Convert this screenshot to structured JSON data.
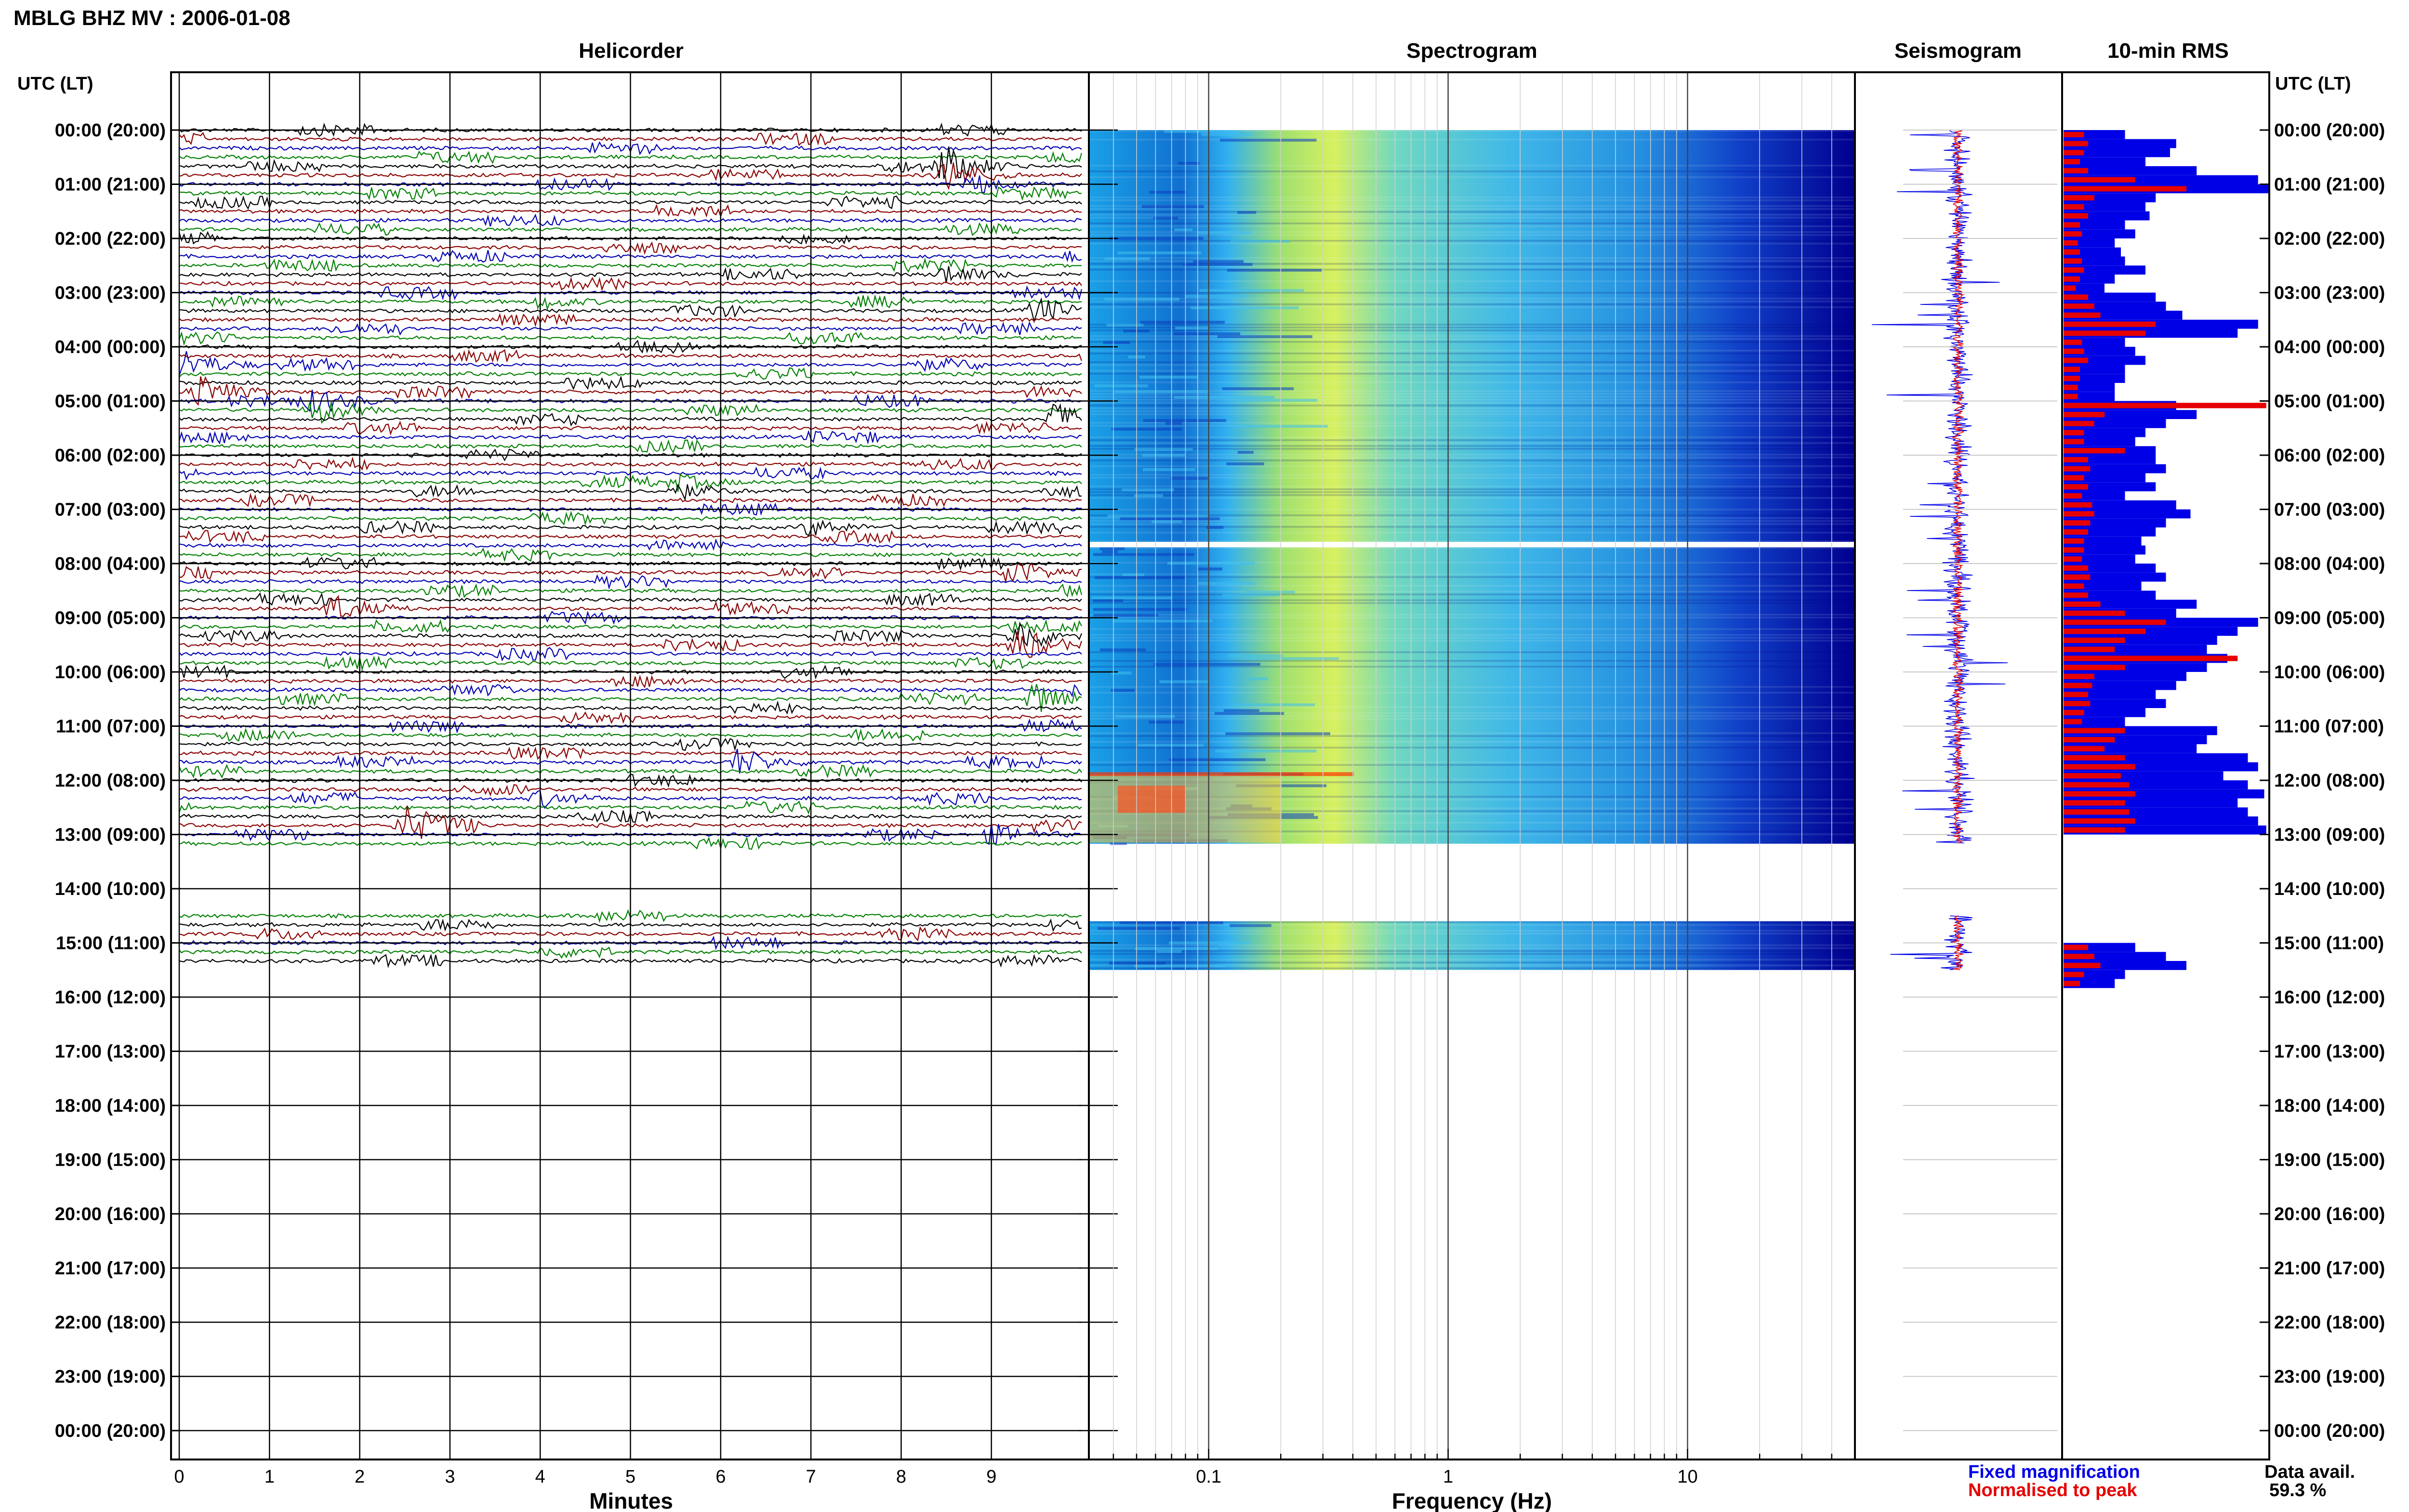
{
  "title": "MBLG BHZ MV : 2006-01-08",
  "panels": {
    "helicorder": "Helicorder",
    "spectrogram": "Spectrogram",
    "seismogram": "Seismogram",
    "rms": "10-min RMS"
  },
  "time_axis_label": "UTC (LT)",
  "time_labels": [
    "00:00 (20:00)",
    "01:00 (21:00)",
    "02:00 (22:00)",
    "03:00 (23:00)",
    "04:00 (00:00)",
    "05:00 (01:00)",
    "06:00 (02:00)",
    "07:00 (03:00)",
    "08:00 (04:00)",
    "09:00 (05:00)",
    "10:00 (06:00)",
    "11:00 (07:00)",
    "12:00 (08:00)",
    "13:00 (09:00)",
    "14:00 (10:00)",
    "15:00 (11:00)",
    "16:00 (12:00)",
    "17:00 (13:00)",
    "18:00 (14:00)",
    "19:00 (15:00)",
    "20:00 (16:00)",
    "21:00 (17:00)",
    "22:00 (18:00)",
    "23:00 (19:00)",
    "00:00 (20:00)"
  ],
  "helicorder_axis": {
    "label": "Minutes",
    "ticks": [
      "0",
      "1",
      "2",
      "3",
      "4",
      "5",
      "6",
      "7",
      "8",
      "9"
    ]
  },
  "frequency_axis": {
    "label": "Frequency (Hz)",
    "ticks": [
      "0.1",
      "1",
      "10"
    ]
  },
  "legend": {
    "fixed": "Fixed magnification",
    "normalised": "Normalised to peak"
  },
  "data_availability": {
    "label": "Data avail.",
    "value": "59.3 %"
  },
  "colors": {
    "trace_cycle": [
      "#000000",
      "#8b0000",
      "#0000b4",
      "#008000"
    ],
    "rms_fixed": "#0000e6",
    "rms_normalised": "#e60000",
    "spectrogram_low": "#00007f",
    "spectrogram_high": "#ff3300"
  },
  "chart_data": [
    {
      "type": "line",
      "name_panel": "helicorder",
      "x_range_minutes": [
        0,
        10
      ],
      "y_range_hours_utc": [
        0,
        24
      ],
      "line_interval_minutes": 10,
      "data_segments_hours_utc": [
        [
          0,
          13.17
        ],
        [
          14.5,
          15.5
        ]
      ],
      "events": [
        {
          "t_hour": 0.75,
          "minute": 8.5,
          "strength": 1.0
        },
        {
          "t_hour": 0.95,
          "minute": 8.8,
          "strength": 0.6
        },
        {
          "t_hour": 2.6,
          "minute": 8.5,
          "strength": 0.6
        },
        {
          "t_hour": 3.2,
          "minute": 4.0,
          "strength": 0.4
        },
        {
          "t_hour": 3.35,
          "minute": 9.5,
          "strength": 0.8
        },
        {
          "t_hour": 4.3,
          "minute": 0.0,
          "strength": 1.0
        },
        {
          "t_hour": 4.8,
          "minute": 0.2,
          "strength": 1.0
        },
        {
          "t_hour": 5.1,
          "minute": 1.5,
          "strength": 0.8
        },
        {
          "t_hour": 5.3,
          "minute": 9.7,
          "strength": 0.9
        },
        {
          "t_hour": 6.6,
          "minute": 5.5,
          "strength": 0.5
        },
        {
          "t_hour": 7.3,
          "minute": 7.0,
          "strength": 0.5
        },
        {
          "t_hour": 8.2,
          "minute": 9.2,
          "strength": 0.9
        },
        {
          "t_hour": 8.8,
          "minute": 1.7,
          "strength": 0.8
        },
        {
          "t_hour": 9.4,
          "minute": 9.3,
          "strength": 1.0
        },
        {
          "t_hour": 10.5,
          "minute": 9.5,
          "strength": 1.0
        },
        {
          "t_hour": 11.7,
          "minute": 6.2,
          "strength": 0.8
        },
        {
          "t_hour": 12.3,
          "minute": 4.0,
          "strength": 0.5
        },
        {
          "t_hour": 12.8,
          "minute": 2.5,
          "strength": 0.9
        },
        {
          "t_hour": 13.0,
          "minute": 9.0,
          "strength": 0.6
        }
      ]
    },
    {
      "type": "heatmap",
      "name_panel": "spectrogram",
      "x_scale": "log",
      "x_range_hz": [
        0.03,
        50
      ],
      "y_range_hours_utc": [
        0,
        24
      ],
      "data_segments_hours_utc": [
        [
          0,
          7.6
        ],
        [
          7.7,
          13.17
        ],
        [
          14.6,
          15.5
        ]
      ],
      "peak_band_hz": [
        0.15,
        0.35
      ]
    },
    {
      "type": "line",
      "name_panel": "seismogram",
      "y_range_hours_utc": [
        0,
        24
      ],
      "data_segments_hours_utc": [
        [
          0,
          13.17
        ],
        [
          14.5,
          15.5
        ]
      ],
      "series": [
        {
          "name": "Fixed magnification"
        },
        {
          "name": "Normalised to peak"
        }
      ]
    },
    {
      "type": "bar",
      "name_panel": "rms",
      "orientation": "horizontal",
      "bin_minutes": 10,
      "start_hour_utc": 0,
      "series": [
        {
          "name": "Fixed magnification",
          "values": [
            0.3,
            0.55,
            0.52,
            0.4,
            0.65,
            0.95,
            1.0,
            0.45,
            0.4,
            0.42,
            0.3,
            0.35,
            0.25,
            0.28,
            0.3,
            0.4,
            0.25,
            0.2,
            0.45,
            0.5,
            0.58,
            0.95,
            0.85,
            0.3,
            0.35,
            0.4,
            0.3,
            0.3,
            0.25,
            0.25,
            0.55,
            0.65,
            0.5,
            0.4,
            0.35,
            0.45,
            0.45,
            0.5,
            0.4,
            0.45,
            0.3,
            0.55,
            0.62,
            0.5,
            0.45,
            0.38,
            0.4,
            0.35,
            0.45,
            0.5,
            0.38,
            0.45,
            0.65,
            0.55,
            0.95,
            0.85,
            0.75,
            0.7,
            0.8,
            0.7,
            0.6,
            0.55,
            0.45,
            0.5,
            0.4,
            0.3,
            0.75,
            0.7,
            0.65,
            0.9,
            0.95,
            0.78,
            0.9,
            0.98,
            0.85,
            0.9,
            0.95,
            0.99,
            0,
            0,
            0,
            0,
            0,
            0,
            0,
            0,
            0,
            0,
            0,
            0,
            0.35,
            0.5,
            0.6,
            0.3,
            0.25
          ],
          "note_values": "fraction of panel width"
        },
        {
          "name": "Normalised to peak",
          "values": [
            0.1,
            0.12,
            0.1,
            0.08,
            0.12,
            0.35,
            0.6,
            0.15,
            0.1,
            0.12,
            0.08,
            0.09,
            0.07,
            0.08,
            0.09,
            0.1,
            0.08,
            0.06,
            0.12,
            0.15,
            0.18,
            0.45,
            0.4,
            0.09,
            0.1,
            0.12,
            0.08,
            0.08,
            0.07,
            0.07,
            0.99,
            0.2,
            0.15,
            0.1,
            0.1,
            0.3,
            0.12,
            0.13,
            0.1,
            0.12,
            0.09,
            0.14,
            0.15,
            0.13,
            0.12,
            0.1,
            0.1,
            0.09,
            0.12,
            0.13,
            0.1,
            0.12,
            0.18,
            0.3,
            0.5,
            0.4,
            0.3,
            0.25,
            0.85,
            0.3,
            0.15,
            0.14,
            0.12,
            0.13,
            0.1,
            0.09,
            0.3,
            0.25,
            0.2,
            0.3,
            0.35,
            0.28,
            0.32,
            0.35,
            0.3,
            0.32,
            0.35,
            0.3,
            0,
            0,
            0,
            0,
            0,
            0,
            0,
            0,
            0,
            0,
            0,
            0,
            0.12,
            0.15,
            0.18,
            0.1,
            0.08
          ]
        }
      ]
    }
  ]
}
